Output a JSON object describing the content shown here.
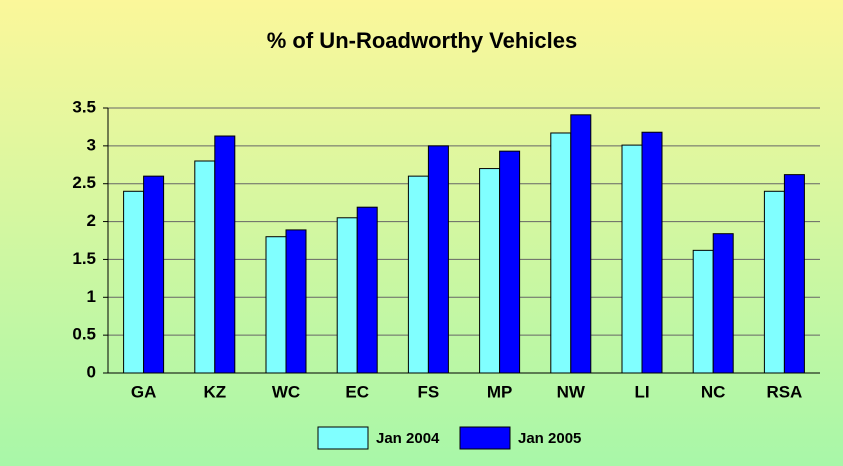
{
  "chart_data": {
    "type": "bar",
    "title": "% of Un-Roadworthy Vehicles",
    "categories": [
      "GA",
      "KZ",
      "WC",
      "EC",
      "FS",
      "MP",
      "NW",
      "LI",
      "NC",
      "RSA"
    ],
    "series": [
      {
        "name": "Jan 2004",
        "color": "#80ffff",
        "values": [
          2.4,
          2.8,
          1.8,
          2.05,
          2.6,
          2.7,
          3.17,
          3.01,
          1.62,
          2.4
        ]
      },
      {
        "name": "Jan 2005",
        "color": "#0000ff",
        "values": [
          2.6,
          3.13,
          1.89,
          2.19,
          3.0,
          2.93,
          3.41,
          3.18,
          1.84,
          2.62
        ]
      }
    ],
    "ylim": [
      0,
      3.5
    ],
    "yticks": [
      0,
      0.5,
      1,
      1.5,
      2,
      2.5,
      3,
      3.5
    ],
    "grid": true,
    "legend": "bottom"
  }
}
